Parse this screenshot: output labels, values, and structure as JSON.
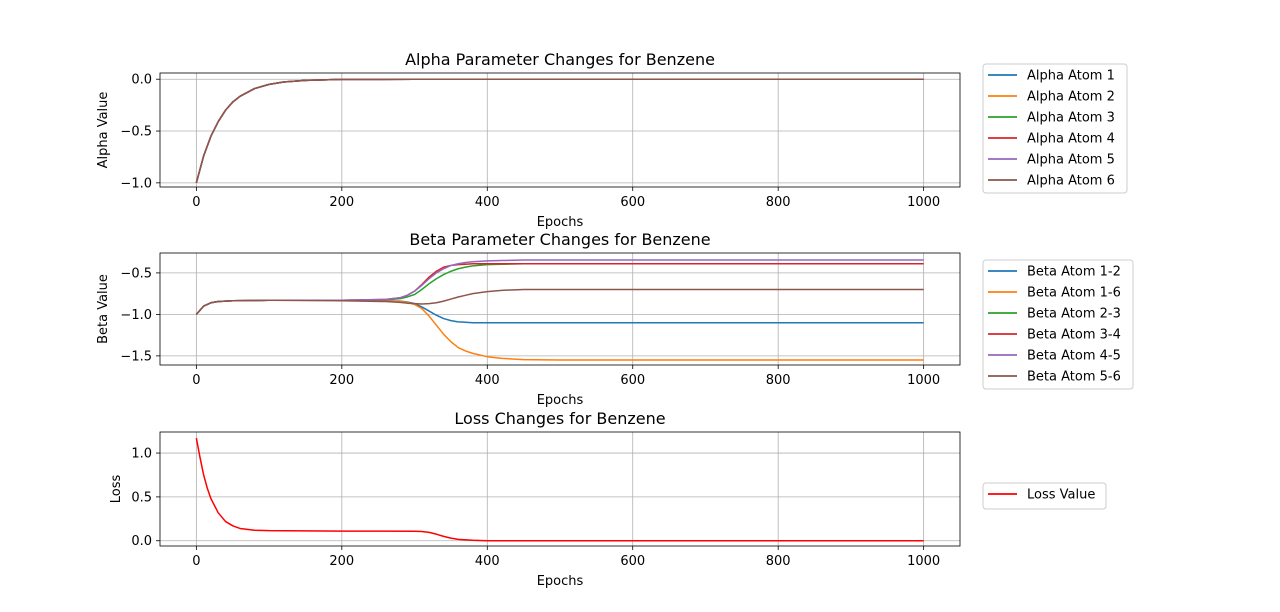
{
  "chart_data": [
    {
      "type": "line",
      "title": "Alpha Parameter Changes for Benzene",
      "xlabel": "Epochs",
      "ylabel": "Alpha Value",
      "xlim": [
        -50,
        1050
      ],
      "ylim": [
        -1.04,
        0.06
      ],
      "xticks": [
        0,
        200,
        400,
        600,
        800,
        1000
      ],
      "xtick_labels": [
        "0",
        "200",
        "400",
        "600",
        "800",
        "1000"
      ],
      "yticks": [
        0.0,
        -0.5,
        -1.0
      ],
      "ytick_labels": [
        "0.0",
        "−0.5",
        "−1.0"
      ],
      "grid": true,
      "legend_placement": "outside-right",
      "x": [
        0,
        10,
        20,
        30,
        40,
        50,
        60,
        80,
        100,
        120,
        150,
        200,
        300,
        400,
        600,
        800,
        1000
      ],
      "series": [
        {
          "name": "Alpha Atom 1",
          "color": "#1f77b4",
          "values": [
            -1.0,
            -0.74,
            -0.55,
            -0.41,
            -0.3,
            -0.22,
            -0.165,
            -0.09,
            -0.05,
            -0.027,
            -0.011,
            -0.002,
            0.0,
            0.0,
            0.0,
            0.0,
            0.0
          ]
        },
        {
          "name": "Alpha Atom 2",
          "color": "#ff7f0e",
          "values": [
            -1.0,
            -0.74,
            -0.55,
            -0.41,
            -0.3,
            -0.22,
            -0.165,
            -0.09,
            -0.05,
            -0.027,
            -0.011,
            -0.002,
            0.0,
            0.0,
            0.0,
            0.0,
            0.0
          ]
        },
        {
          "name": "Alpha Atom 3",
          "color": "#2ca02c",
          "values": [
            -1.0,
            -0.74,
            -0.55,
            -0.41,
            -0.3,
            -0.22,
            -0.165,
            -0.09,
            -0.05,
            -0.027,
            -0.011,
            -0.002,
            0.0,
            0.0,
            0.0,
            0.0,
            0.0
          ]
        },
        {
          "name": "Alpha Atom 4",
          "color": "#d62728",
          "values": [
            -1.0,
            -0.74,
            -0.55,
            -0.41,
            -0.3,
            -0.22,
            -0.165,
            -0.09,
            -0.05,
            -0.027,
            -0.011,
            -0.002,
            0.0,
            0.0,
            0.0,
            0.0,
            0.0
          ]
        },
        {
          "name": "Alpha Atom 5",
          "color": "#9467bd",
          "values": [
            -1.0,
            -0.74,
            -0.55,
            -0.41,
            -0.3,
            -0.22,
            -0.165,
            -0.09,
            -0.05,
            -0.027,
            -0.011,
            -0.002,
            0.0,
            0.0,
            0.0,
            0.0,
            0.0
          ]
        },
        {
          "name": "Alpha Atom 6",
          "color": "#8c564b",
          "values": [
            -1.0,
            -0.74,
            -0.55,
            -0.41,
            -0.3,
            -0.22,
            -0.165,
            -0.09,
            -0.05,
            -0.027,
            -0.011,
            -0.002,
            0.0,
            0.0,
            0.0,
            0.0,
            0.0
          ]
        }
      ]
    },
    {
      "type": "line",
      "title": "Beta Parameter Changes for Benzene",
      "xlabel": "Epochs",
      "ylabel": "Beta Value",
      "xlim": [
        -50,
        1050
      ],
      "ylim": [
        -1.61,
        -0.26
      ],
      "xticks": [
        0,
        200,
        400,
        600,
        800,
        1000
      ],
      "xtick_labels": [
        "0",
        "200",
        "400",
        "600",
        "800",
        "1000"
      ],
      "yticks": [
        -0.5,
        -1.0,
        -1.5
      ],
      "ytick_labels": [
        "−0.5",
        "−1.0",
        "−1.5"
      ],
      "grid": true,
      "legend_placement": "outside-right",
      "x": [
        0,
        10,
        20,
        30,
        50,
        100,
        200,
        260,
        280,
        290,
        300,
        310,
        320,
        330,
        340,
        350,
        360,
        370,
        380,
        400,
        420,
        450,
        500,
        600,
        800,
        1000
      ],
      "series": [
        {
          "name": "Beta Atom 1-2",
          "color": "#1f77b4",
          "values": [
            -1.0,
            -0.9,
            -0.86,
            -0.845,
            -0.835,
            -0.83,
            -0.83,
            -0.835,
            -0.84,
            -0.85,
            -0.87,
            -0.91,
            -0.96,
            -1.01,
            -1.05,
            -1.075,
            -1.09,
            -1.095,
            -1.1,
            -1.1,
            -1.1,
            -1.1,
            -1.1,
            -1.1,
            -1.1,
            -1.1
          ]
        },
        {
          "name": "Beta Atom 1-6",
          "color": "#ff7f0e",
          "values": [
            -1.0,
            -0.9,
            -0.86,
            -0.845,
            -0.835,
            -0.83,
            -0.83,
            -0.835,
            -0.845,
            -0.855,
            -0.88,
            -0.93,
            -1.02,
            -1.13,
            -1.24,
            -1.33,
            -1.4,
            -1.44,
            -1.47,
            -1.51,
            -1.53,
            -1.545,
            -1.55,
            -1.55,
            -1.55,
            -1.55
          ]
        },
        {
          "name": "Beta Atom 2-3",
          "color": "#2ca02c",
          "values": [
            -1.0,
            -0.9,
            -0.86,
            -0.845,
            -0.835,
            -0.83,
            -0.83,
            -0.825,
            -0.81,
            -0.79,
            -0.76,
            -0.7,
            -0.63,
            -0.57,
            -0.52,
            -0.48,
            -0.45,
            -0.43,
            -0.415,
            -0.4,
            -0.395,
            -0.39,
            -0.39,
            -0.39,
            -0.39,
            -0.39
          ]
        },
        {
          "name": "Beta Atom 3-4",
          "color": "#d62728",
          "values": [
            -1.0,
            -0.9,
            -0.86,
            -0.845,
            -0.835,
            -0.83,
            -0.83,
            -0.82,
            -0.8,
            -0.77,
            -0.72,
            -0.64,
            -0.55,
            -0.48,
            -0.43,
            -0.41,
            -0.4,
            -0.395,
            -0.39,
            -0.39,
            -0.39,
            -0.39,
            -0.39,
            -0.39,
            -0.39,
            -0.39
          ]
        },
        {
          "name": "Beta Atom 4-5",
          "color": "#9467bd",
          "values": [
            -1.0,
            -0.9,
            -0.86,
            -0.845,
            -0.835,
            -0.83,
            -0.83,
            -0.82,
            -0.8,
            -0.77,
            -0.72,
            -0.65,
            -0.57,
            -0.5,
            -0.45,
            -0.41,
            -0.39,
            -0.375,
            -0.365,
            -0.355,
            -0.35,
            -0.345,
            -0.345,
            -0.345,
            -0.345,
            -0.345
          ]
        },
        {
          "name": "Beta Atom 5-6",
          "color": "#8c564b",
          "values": [
            -1.0,
            -0.9,
            -0.86,
            -0.845,
            -0.835,
            -0.83,
            -0.835,
            -0.845,
            -0.855,
            -0.865,
            -0.87,
            -0.875,
            -0.87,
            -0.86,
            -0.84,
            -0.815,
            -0.79,
            -0.77,
            -0.75,
            -0.725,
            -0.71,
            -0.7,
            -0.7,
            -0.7,
            -0.7,
            -0.7
          ]
        }
      ]
    },
    {
      "type": "line",
      "title": "Loss Changes for Benzene",
      "xlabel": "Epochs",
      "ylabel": "Loss",
      "xlim": [
        -50,
        1050
      ],
      "ylim": [
        -0.06,
        1.24
      ],
      "xticks": [
        0,
        200,
        400,
        600,
        800,
        1000
      ],
      "xtick_labels": [
        "0",
        "200",
        "400",
        "600",
        "800",
        "1000"
      ],
      "yticks": [
        0.0,
        0.5,
        1.0
      ],
      "ytick_labels": [
        "0.0",
        "0.5",
        "1.0"
      ],
      "grid": true,
      "legend_placement": "outside-right",
      "x": [
        0,
        5,
        10,
        15,
        20,
        30,
        40,
        50,
        60,
        80,
        100,
        150,
        200,
        250,
        300,
        310,
        320,
        330,
        340,
        350,
        360,
        380,
        400,
        600,
        800,
        1000
      ],
      "series": [
        {
          "name": "Loss Value",
          "color": "#ff0000",
          "values": [
            1.17,
            0.95,
            0.75,
            0.6,
            0.48,
            0.32,
            0.22,
            0.17,
            0.14,
            0.12,
            0.115,
            0.112,
            0.11,
            0.11,
            0.108,
            0.105,
            0.095,
            0.075,
            0.05,
            0.03,
            0.015,
            0.005,
            0.0,
            0.0,
            0.0,
            0.0
          ]
        }
      ]
    }
  ]
}
